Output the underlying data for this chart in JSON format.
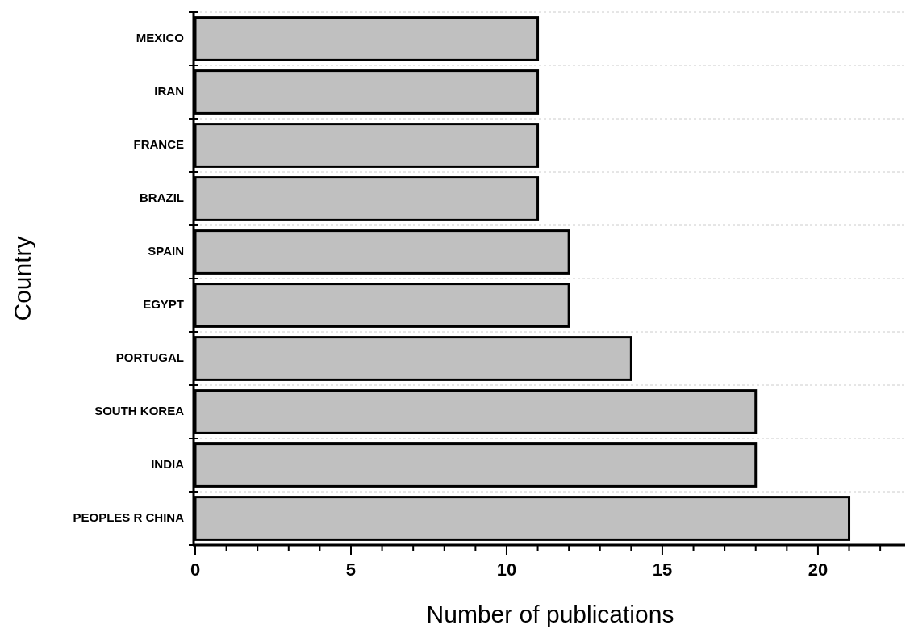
{
  "chart_data": {
    "type": "bar",
    "orientation": "horizontal",
    "xlabel": "Number of publications",
    "ylabel": "Country",
    "categories": [
      "MEXICO",
      "IRAN",
      "FRANCE",
      "BRAZIL",
      "SPAIN",
      "EGYPT",
      "PORTUGAL",
      "SOUTH KOREA",
      "INDIA",
      "PEOPLES R CHINA"
    ],
    "values": [
      11,
      11,
      11,
      11,
      12,
      12,
      14,
      18,
      18,
      21
    ],
    "color": "#c0c0c0",
    "xlim": [
      0,
      22.8
    ],
    "xticks": [
      0,
      {
        "value": 1,
        "label": null
      },
      {
        "value": 2,
        "label": null
      },
      {
        "value": 3,
        "label": null
      },
      {
        "value": 4,
        "label": null
      },
      5,
      {
        "value": 6,
        "label": null
      },
      {
        "value": 7,
        "label": null
      },
      {
        "value": 8,
        "label": null
      },
      {
        "value": 9,
        "label": null
      },
      10,
      {
        "value": 11,
        "label": null
      },
      {
        "value": 12,
        "label": null
      },
      {
        "value": 13,
        "label": null
      },
      {
        "value": 14,
        "label": null
      },
      15,
      {
        "value": 16,
        "label": null
      },
      {
        "value": 17,
        "label": null
      },
      {
        "value": 18,
        "label": null
      },
      {
        "value": 19,
        "label": null
      },
      20,
      {
        "value": 21,
        "label": null
      },
      {
        "value": 22,
        "label": null
      }
    ],
    "grid": "y"
  }
}
